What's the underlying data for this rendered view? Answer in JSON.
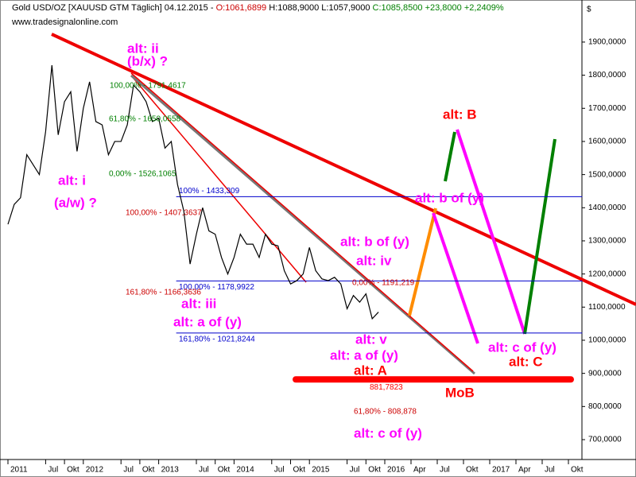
{
  "chart_data": {
    "type": "line",
    "header": [
      "Gold USD/OZ [XAUUSD GTM  Täglich] 04.12.2015 - ",
      "O:1061,6899",
      " H:1088,9000 L:1057,9000 ",
      "C:1085,8500 +23,8000 +2,2409%"
    ],
    "header_colors": [
      "#000000",
      "#cc0000",
      "#000000",
      "#008000"
    ],
    "source": "www.tradesignalonline.com",
    "unit": "$",
    "x": [
      "2011-01",
      "2011-02",
      "2011-03",
      "2011-04",
      "2011-05",
      "2011-06",
      "2011-07",
      "2011-08",
      "2011-09",
      "2011-10",
      "2011-11",
      "2011-12",
      "2012-01",
      "2012-02",
      "2012-03",
      "2012-04",
      "2012-05",
      "2012-06",
      "2012-07",
      "2012-08",
      "2012-09",
      "2012-10",
      "2012-11",
      "2012-12",
      "2013-01",
      "2013-02",
      "2013-03",
      "2013-04",
      "2013-05",
      "2013-06",
      "2013-07",
      "2013-08",
      "2013-09",
      "2013-10",
      "2013-11",
      "2013-12",
      "2014-01",
      "2014-02",
      "2014-03",
      "2014-04",
      "2014-05",
      "2014-06",
      "2014-07",
      "2014-08",
      "2014-09",
      "2014-10",
      "2014-11",
      "2014-12",
      "2015-01",
      "2015-02",
      "2015-03",
      "2015-04",
      "2015-05",
      "2015-06",
      "2015-07",
      "2015-08",
      "2015-09",
      "2015-10",
      "2015-11",
      "2015-12"
    ],
    "series": [
      {
        "name": "Gold USD/OZ",
        "color": "#000000",
        "values": [
          1350,
          1410,
          1430,
          1560,
          1530,
          1500,
          1630,
          1830,
          1620,
          1720,
          1750,
          1570,
          1700,
          1780,
          1660,
          1650,
          1560,
          1600,
          1600,
          1650,
          1770,
          1750,
          1720,
          1660,
          1670,
          1580,
          1600,
          1470,
          1390,
          1230,
          1320,
          1400,
          1330,
          1320,
          1250,
          1200,
          1250,
          1320,
          1290,
          1290,
          1250,
          1320,
          1290,
          1285,
          1210,
          1170,
          1180,
          1200,
          1280,
          1210,
          1185,
          1180,
          1190,
          1170,
          1095,
          1135,
          1115,
          1140,
          1065,
          1085
        ]
      }
    ],
    "xticks": [
      {
        "value": "2011-01",
        "label": "2011"
      },
      {
        "value": "2011-07",
        "label": "Jul"
      },
      {
        "value": "2011-10",
        "label": "Okt"
      },
      {
        "value": "2012-01",
        "label": "2012"
      },
      {
        "value": "2012-07",
        "label": "Jul"
      },
      {
        "value": "2012-10",
        "label": "Okt"
      },
      {
        "value": "2013-01",
        "label": "2013"
      },
      {
        "value": "2013-07",
        "label": "Jul"
      },
      {
        "value": "2013-10",
        "label": "Okt"
      },
      {
        "value": "2014-01",
        "label": "2014"
      },
      {
        "value": "2014-07",
        "label": "Jul"
      },
      {
        "value": "2014-10",
        "label": "Okt"
      },
      {
        "value": "2015-01",
        "label": "2015"
      },
      {
        "value": "2015-07",
        "label": "Jul"
      },
      {
        "value": "2015-10",
        "label": "Okt"
      },
      {
        "value": "2016-01",
        "label": "2016"
      },
      {
        "value": "2016-04",
        "label": "Apr"
      },
      {
        "value": "2016-07",
        "label": "Jul"
      },
      {
        "value": "2016-10",
        "label": "Okt"
      },
      {
        "value": "2017-01",
        "label": "2017"
      },
      {
        "value": "2017-04",
        "label": "Apr"
      },
      {
        "value": "2017-07",
        "label": "Jul"
      },
      {
        "value": "2017-10",
        "label": "Okt"
      }
    ],
    "ylim": [
      640,
      2027
    ],
    "yticks": [
      {
        "value": 700,
        "label": "700,0000"
      },
      {
        "value": 800,
        "label": "800,0000"
      },
      {
        "value": 900,
        "label": "900,0000"
      },
      {
        "value": 1000,
        "label": "1000,0000"
      },
      {
        "value": 1100,
        "label": "1100,0000"
      },
      {
        "value": 1200,
        "label": "1200,0000"
      },
      {
        "value": 1300,
        "label": "1300,0000"
      },
      {
        "value": 1400,
        "label": "1400,0000"
      },
      {
        "value": 1500,
        "label": "1500,0000"
      },
      {
        "value": 1600,
        "label": "1600,0000"
      },
      {
        "value": 1700,
        "label": "1700,0000"
      },
      {
        "value": 1800,
        "label": "1800,0000"
      },
      {
        "value": 1900,
        "label": "1900,0000"
      }
    ],
    "levels": [
      {
        "value": 1433.309,
        "label": "100% - 1433,309",
        "color": "#0000cc"
      },
      {
        "value": 1178.9922,
        "label": "100,00% - 1178,9922",
        "color": "#0000cc"
      },
      {
        "value": 1021.8244,
        "label": "161,80% - 1021,8244",
        "color": "#0000cc"
      },
      {
        "value": 881.7823,
        "label": "881,7823",
        "color": "#ff0000"
      }
    ],
    "fib_labels": [
      {
        "label": "100,00% - 1791,4617",
        "color": "#008000"
      },
      {
        "label": "61,80% - 1650,0558",
        "color": "#008000"
      },
      {
        "label": "0,00% - 1526,1065",
        "color": "#008000"
      },
      {
        "label": "100,00% - 1407,3637",
        "color": "#cc0000"
      },
      {
        "label": "161,80% - 1166,3636",
        "color": "#cc0000"
      },
      {
        "label": "0,00% - 1191,219",
        "color": "#cc0000"
      },
      {
        "label": "61,80% - 808,878",
        "color": "#cc0000"
      }
    ],
    "annotations": [
      {
        "text": "alt: ii",
        "color": "#ff00ff"
      },
      {
        "text": "(b/x) ?",
        "color": "#ff00ff"
      },
      {
        "text": "alt: i",
        "color": "#ff00ff"
      },
      {
        "text": "(a/w) ?",
        "color": "#ff00ff"
      },
      {
        "text": "alt: iii",
        "color": "#ff00ff"
      },
      {
        "text": "alt: a of (y)",
        "color": "#ff00ff"
      },
      {
        "text": "alt: b of (y)",
        "color": "#ff00ff"
      },
      {
        "text": "alt: iv",
        "color": "#ff00ff"
      },
      {
        "text": "alt: v",
        "color": "#ff00ff"
      },
      {
        "text": "alt: a of (y)",
        "color": "#ff00ff"
      },
      {
        "text": "alt: b of (y)",
        "color": "#ff00ff"
      },
      {
        "text": "alt: c of (y)",
        "color": "#ff00ff"
      },
      {
        "text": "alt: c of (y)",
        "color": "#ff00ff"
      },
      {
        "text": "alt: B",
        "color": "#ff0000"
      },
      {
        "text": "alt: A",
        "color": "#ff0000"
      },
      {
        "text": "MoB",
        "color": "#ff0000"
      },
      {
        "text": "alt: C",
        "color": "#ff0000"
      }
    ]
  }
}
